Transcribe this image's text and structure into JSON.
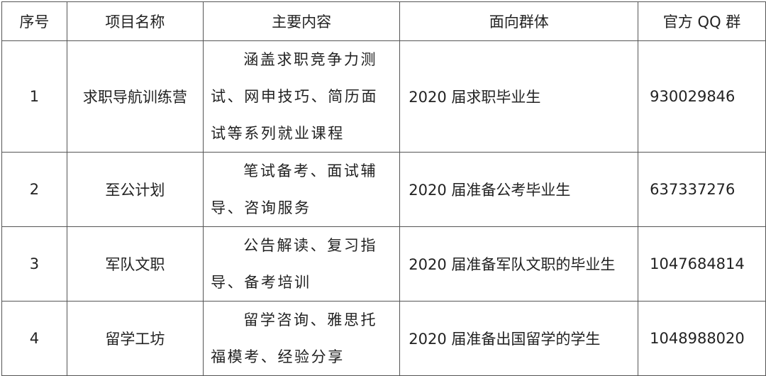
{
  "headers": [
    "序号",
    "项目名称",
    "主要内容",
    "面向群体",
    "官方 QQ 群"
  ],
  "rows": [
    {
      "no": "1",
      "name": "求职导航训练营",
      "content": "涵盖求职竞争力测试、网申技巧、简历面试等系列就业课程",
      "audience": "2020 届求职毕业生",
      "qq": "930029846"
    },
    {
      "no": "2",
      "name": "至公计划",
      "content": "笔试备考、面试辅导、咨询服务",
      "audience": "2020 届准备公考毕业生",
      "qq": "637337276"
    },
    {
      "no": "3",
      "name": "军队文职",
      "content": "公告解读、复习指导、备考培训",
      "audience": "2020 届准备军队文职的毕业生",
      "qq": "1047684814"
    },
    {
      "no": "4",
      "name": "留学工坊",
      "content": "留学咨询、雅思托福模考、经验分享",
      "audience": "2020 届准备出国留学的学生",
      "qq": "1048988020"
    }
  ]
}
